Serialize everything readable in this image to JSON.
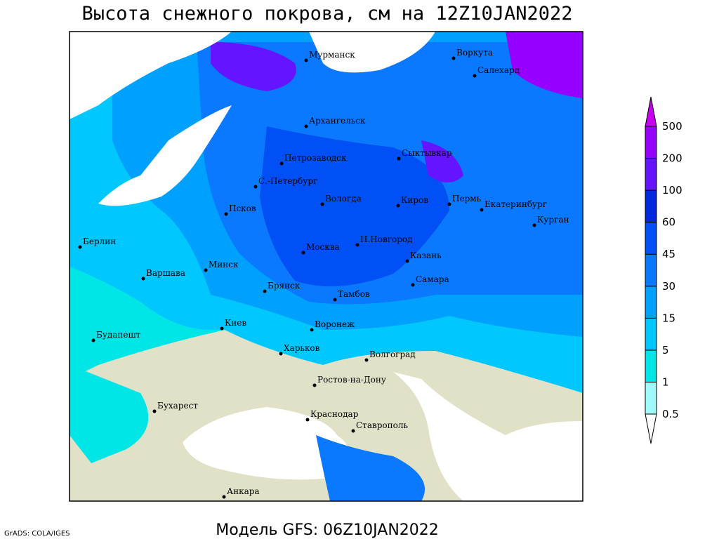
{
  "title": "Высота снежного покрова, см на 12Z10JAN2022",
  "footer": "Модель GFS: 06Z10JAN2022",
  "credit": "GrADS: COLA/IGES",
  "cities": [
    "Мурманск",
    "Воркута",
    "Салехард",
    "Архангельск",
    "Петрозаводск",
    "Сыктывкар",
    "С.-Петербург",
    "Вологда",
    "Киров",
    "Пермь",
    "Екатеринбург",
    "Курган",
    "Псков",
    "Берлин",
    "Москва",
    "Н.Новгород",
    "Казань",
    "Минск",
    "Варшава",
    "Брянск",
    "Тамбов",
    "Самара",
    "Киев",
    "Воронеж",
    "Будапешт",
    "Харьков",
    "Волгоград",
    "Ростов-на-Дону",
    "Бухарест",
    "Краснодар",
    "Ставрополь",
    "Анкара"
  ],
  "legend": {
    "levels": [
      0.5,
      1,
      5,
      15,
      30,
      45,
      60,
      100,
      200,
      500
    ],
    "colors": [
      "#ffffff",
      "#a0fafa",
      "#00e6e6",
      "#00c8ff",
      "#00a0ff",
      "#0a78ff",
      "#0050f5",
      "#0028dc",
      "#6414ff",
      "#9600ff",
      "#c800f0"
    ]
  }
}
